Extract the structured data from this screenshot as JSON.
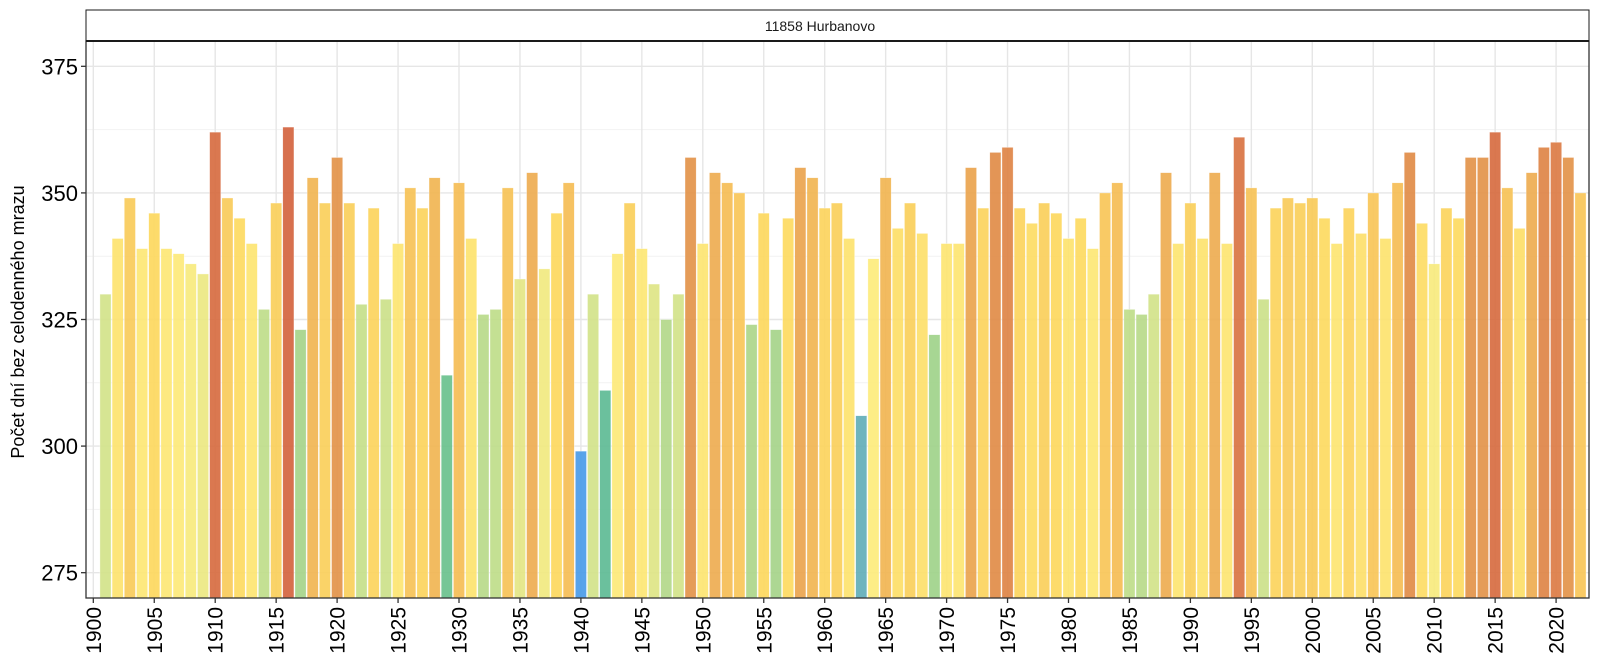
{
  "chart_data": {
    "type": "bar",
    "strip_title": "11858 Hurbanovo",
    "xlabel": "",
    "ylabel": "Počet dní bez celodenného mrazu",
    "ylim": [
      270,
      380
    ],
    "xlim": [
      1899.4,
      2022.7
    ],
    "grid": true,
    "legend": "none",
    "y_ticks": [
      275,
      300,
      325,
      350,
      375
    ],
    "y_tick_labels": [
      "275",
      "300",
      "325",
      "350",
      "375"
    ],
    "x_ticks": [
      1900,
      1905,
      1910,
      1915,
      1920,
      1925,
      1930,
      1935,
      1940,
      1945,
      1950,
      1955,
      1960,
      1965,
      1970,
      1975,
      1980,
      1985,
      1990,
      1995,
      2000,
      2005,
      2010,
      2015,
      2020
    ],
    "x_tick_labels": [
      "1900",
      "1905",
      "1910",
      "1915",
      "1920",
      "1925",
      "1930",
      "1935",
      "1940",
      "1945",
      "1950",
      "1955",
      "1960",
      "1965",
      "1970",
      "1975",
      "1980",
      "1985",
      "1990",
      "1995",
      "2000",
      "2005",
      "2010",
      "2015",
      "2020"
    ],
    "color_scale": [
      {
        "value": 299,
        "color": "#4a9be8"
      },
      {
        "value": 306,
        "color": "#62aeb8"
      },
      {
        "value": 312,
        "color": "#5dbd8e"
      },
      {
        "value": 323,
        "color": "#a6d48a"
      },
      {
        "value": 330,
        "color": "#d2e38a"
      },
      {
        "value": 337,
        "color": "#fdeb7c"
      },
      {
        "value": 346,
        "color": "#fdd85e"
      },
      {
        "value": 352,
        "color": "#f5bd55"
      },
      {
        "value": 357,
        "color": "#e3944a"
      },
      {
        "value": 363,
        "color": "#d4643f"
      }
    ],
    "x": [
      1901,
      1902,
      1903,
      1904,
      1905,
      1906,
      1907,
      1908,
      1909,
      1910,
      1911,
      1912,
      1913,
      1914,
      1915,
      1916,
      1917,
      1918,
      1919,
      1920,
      1921,
      1922,
      1923,
      1924,
      1925,
      1926,
      1927,
      1928,
      1929,
      1930,
      1931,
      1932,
      1933,
      1934,
      1935,
      1936,
      1937,
      1938,
      1939,
      1940,
      1941,
      1942,
      1943,
      1944,
      1945,
      1946,
      1947,
      1948,
      1949,
      1950,
      1951,
      1952,
      1953,
      1954,
      1955,
      1956,
      1957,
      1958,
      1959,
      1960,
      1961,
      1962,
      1963,
      1964,
      1965,
      1966,
      1967,
      1968,
      1969,
      1970,
      1971,
      1972,
      1973,
      1974,
      1975,
      1976,
      1977,
      1978,
      1979,
      1980,
      1981,
      1982,
      1983,
      1984,
      1985,
      1986,
      1987,
      1988,
      1989,
      1990,
      1991,
      1992,
      1993,
      1994,
      1995,
      1996,
      1997,
      1998,
      1999,
      2000,
      2001,
      2002,
      2003,
      2004,
      2005,
      2006,
      2007,
      2008,
      2009,
      2010,
      2011,
      2012,
      2013,
      2014,
      2015,
      2016,
      2017,
      2018,
      2019,
      2020,
      2021,
      2022
    ],
    "values": [
      330,
      341,
      349,
      339,
      346,
      339,
      338,
      336,
      334,
      362,
      349,
      345,
      340,
      327,
      348,
      363,
      323,
      353,
      348,
      357,
      348,
      328,
      347,
      329,
      340,
      351,
      347,
      353,
      314,
      352,
      341,
      326,
      327,
      351,
      333,
      354,
      335,
      346,
      352,
      299,
      330,
      311,
      338,
      348,
      339,
      332,
      325,
      330,
      357,
      340,
      354,
      352,
      350,
      324,
      346,
      323,
      345,
      355,
      353,
      347,
      348,
      341,
      306,
      337,
      353,
      343,
      348,
      342,
      322,
      340,
      340,
      355,
      347,
      358,
      359,
      347,
      344,
      348,
      346,
      341,
      345,
      339,
      350,
      352,
      327,
      326,
      330,
      354,
      340,
      348,
      341,
      354,
      340,
      361,
      351,
      329,
      347,
      349,
      348,
      349,
      345,
      340,
      347,
      342,
      350,
      341,
      352,
      358,
      344,
      336,
      347,
      345,
      357,
      357,
      362,
      351,
      343,
      354,
      359,
      360,
      357,
      350
    ]
  }
}
